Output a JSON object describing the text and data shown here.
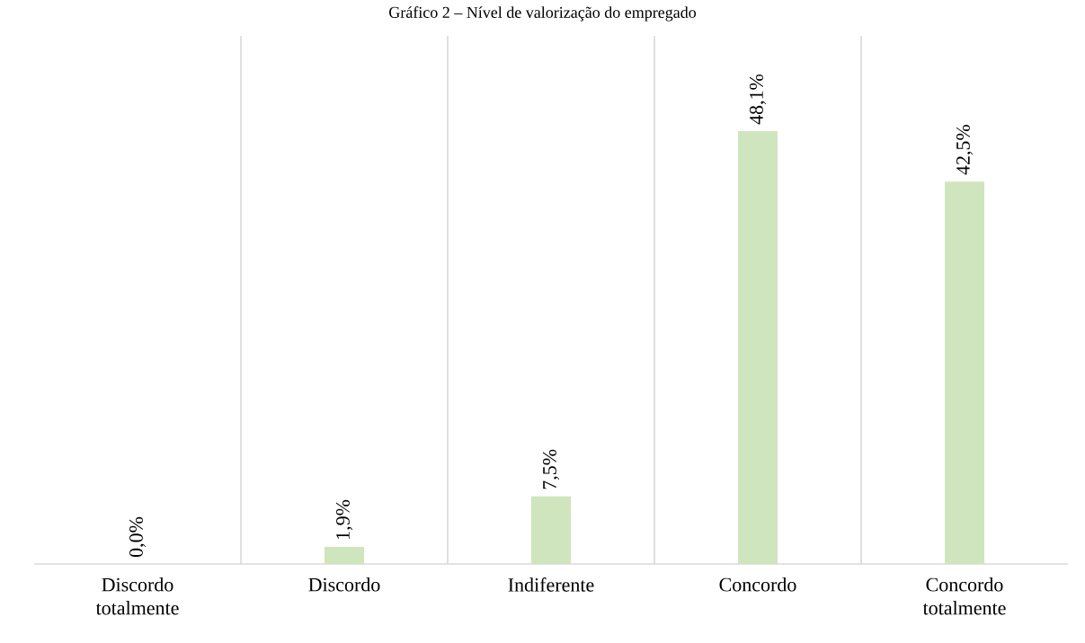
{
  "chart_data": {
    "type": "bar",
    "title": "Gráfico 2 – Nível de valorização do empregado",
    "categories": [
      "Discordo totalmente",
      "Discordo",
      "Indiferente",
      "Concordo",
      "Concordo totalmente"
    ],
    "values": [
      0.0,
      1.9,
      7.5,
      48.1,
      42.5
    ],
    "value_labels": [
      "0,0%",
      "1,9%",
      "7,5%",
      "48,1%",
      "42,5%"
    ],
    "color": "#cfe5bd",
    "grid": "x"
  }
}
